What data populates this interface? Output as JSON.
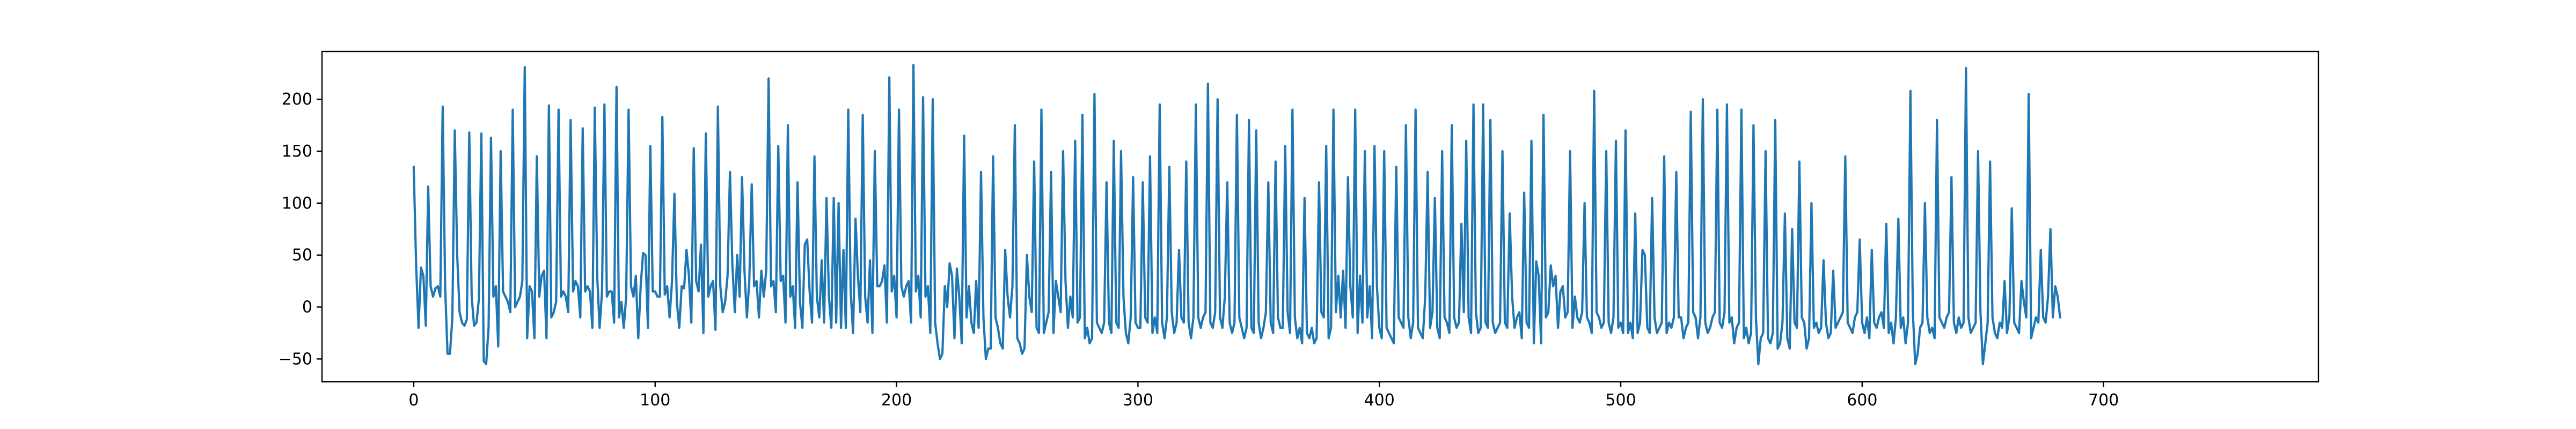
{
  "chart_data": {
    "type": "line",
    "title": "",
    "xlabel": "",
    "ylabel": "",
    "xlim": [
      -38,
      789
    ],
    "ylim": [
      -72,
      246
    ],
    "grid": false,
    "legend": "none",
    "x_ticks": [
      0,
      100,
      200,
      300,
      400,
      500,
      600,
      700
    ],
    "y_ticks": [
      -50,
      0,
      50,
      100,
      150,
      200
    ],
    "x_tick_labels": [
      "0",
      "100",
      "200",
      "300",
      "400",
      "500",
      "600",
      "700"
    ],
    "y_tick_labels": [
      "−50",
      "0",
      "50",
      "100",
      "150",
      "200"
    ],
    "series": [
      {
        "color": "#1f77b4",
        "x_start": 0,
        "x_step": 1,
        "values": [
          135,
          40,
          -20,
          38,
          30,
          -18,
          116,
          20,
          10,
          18,
          20,
          10,
          193,
          20,
          -45,
          -45,
          -10,
          170,
          50,
          -5,
          -15,
          -18,
          -12,
          168,
          10,
          -18,
          -15,
          8,
          167,
          -52,
          -55,
          -20,
          163,
          10,
          20,
          -38,
          150,
          15,
          10,
          5,
          -5,
          190,
          0,
          5,
          10,
          25,
          231,
          -30,
          20,
          15,
          -30,
          145,
          10,
          30,
          35,
          -30,
          194,
          -10,
          -5,
          5,
          190,
          10,
          15,
          10,
          -5,
          180,
          15,
          25,
          20,
          -10,
          172,
          15,
          20,
          15,
          -20,
          192,
          30,
          -20,
          15,
          195,
          10,
          15,
          15,
          -15,
          212,
          -10,
          5,
          -20,
          10,
          190,
          20,
          10,
          30,
          -30,
          20,
          52,
          50,
          -20,
          155,
          15,
          15,
          10,
          10,
          183,
          12,
          20,
          -10,
          25,
          109,
          5,
          -20,
          20,
          18,
          55,
          30,
          -15,
          153,
          25,
          15,
          60,
          -25,
          167,
          10,
          20,
          25,
          -22,
          193,
          20,
          -5,
          5,
          30,
          130,
          40,
          -5,
          50,
          10,
          125,
          35,
          -10,
          25,
          118,
          20,
          25,
          -10,
          35,
          10,
          35,
          220,
          20,
          25,
          -5,
          155,
          25,
          30,
          -15,
          175,
          10,
          20,
          -20,
          120,
          5,
          -20,
          60,
          65,
          15,
          -15,
          145,
          10,
          -10,
          45,
          -15,
          105,
          10,
          -20,
          105,
          -15,
          100,
          -20,
          55,
          -20,
          190,
          15,
          -25,
          85,
          30,
          -5,
          185,
          10,
          -15,
          45,
          -25,
          150,
          20,
          20,
          25,
          40,
          -15,
          221,
          15,
          30,
          -10,
          190,
          20,
          10,
          20,
          25,
          -15,
          233,
          15,
          30,
          -10,
          202,
          10,
          20,
          -25,
          200,
          -15,
          -35,
          -50,
          -45,
          20,
          0,
          42,
          30,
          -30,
          37,
          10,
          -35,
          165,
          -10,
          20,
          -15,
          -25,
          25,
          -20,
          130,
          -10,
          -50,
          -40,
          -40,
          145,
          -10,
          -20,
          -35,
          -40,
          55,
          10,
          -10,
          20,
          175,
          -30,
          -35,
          -45,
          -40,
          50,
          10,
          -5,
          140,
          -20,
          -25,
          190,
          -25,
          -15,
          -5,
          130,
          -25,
          25,
          10,
          -5,
          150,
          25,
          -20,
          10,
          -10,
          160,
          -15,
          -10,
          185,
          -30,
          -20,
          -35,
          -30,
          205,
          -15,
          -20,
          -25,
          -15,
          120,
          -15,
          -25,
          160,
          -15,
          -20,
          150,
          10,
          -25,
          -35,
          -10,
          125,
          -15,
          -20,
          -20,
          120,
          -10,
          -15,
          145,
          -25,
          -10,
          -25,
          195,
          -15,
          -30,
          -10,
          135,
          -5,
          -25,
          -15,
          55,
          -10,
          -15,
          140,
          -15,
          -30,
          -10,
          195,
          -10,
          -20,
          -10,
          -5,
          215,
          -15,
          -20,
          -5,
          200,
          -10,
          -20,
          10,
          120,
          -15,
          -25,
          -15,
          185,
          -10,
          -20,
          -30,
          -20,
          180,
          -20,
          -25,
          170,
          -15,
          -30,
          -20,
          -5,
          120,
          -15,
          -25,
          140,
          -10,
          -20,
          -20,
          155,
          -5,
          -25,
          190,
          -10,
          -30,
          -20,
          -35,
          105,
          -25,
          -30,
          -20,
          -35,
          -30,
          120,
          -5,
          -10,
          155,
          -30,
          -20,
          190,
          -5,
          30,
          -10,
          35,
          -20,
          125,
          20,
          -10,
          190,
          -25,
          30,
          -15,
          150,
          -10,
          20,
          -30,
          155,
          20,
          -20,
          -30,
          150,
          -20,
          -25,
          -30,
          -35,
          135,
          -10,
          -15,
          -20,
          175,
          -10,
          -30,
          -15,
          190,
          -20,
          -25,
          -30,
          10,
          130,
          -20,
          -5,
          105,
          -20,
          -30,
          150,
          -10,
          -15,
          -25,
          175,
          -10,
          -20,
          -15,
          80,
          -5,
          160,
          -10,
          -25,
          195,
          -5,
          -25,
          -20,
          195,
          -15,
          -20,
          180,
          -15,
          -25,
          -20,
          -15,
          150,
          -15,
          -20,
          90,
          10,
          -20,
          -10,
          -5,
          -30,
          110,
          -15,
          -20,
          160,
          -35,
          44,
          30,
          -35,
          185,
          -10,
          -5,
          40,
          20,
          30,
          -20,
          15,
          20,
          -10,
          -5,
          150,
          -20,
          10,
          -10,
          -15,
          -5,
          100,
          -10,
          -15,
          -25,
          208,
          -5,
          -10,
          -20,
          -15,
          150,
          -15,
          -25,
          -10,
          160,
          -20,
          -15,
          -25,
          170,
          -25,
          -15,
          -30,
          90,
          -25,
          -15,
          55,
          50,
          -20,
          -25,
          105,
          -10,
          -25,
          -20,
          -15,
          145,
          -25,
          -15,
          -20,
          -10,
          130,
          -10,
          -10,
          -30,
          -20,
          -15,
          188,
          -5,
          -10,
          -30,
          -10,
          200,
          -15,
          -25,
          -20,
          -10,
          -5,
          190,
          -15,
          -20,
          -5,
          195,
          -15,
          -10,
          -35,
          -20,
          -15,
          190,
          -30,
          -20,
          -35,
          -25,
          175,
          -10,
          -55,
          -30,
          -25,
          150,
          -30,
          -35,
          -25,
          180,
          -40,
          -35,
          -15,
          90,
          -30,
          -40,
          75,
          -15,
          -20,
          140,
          -10,
          -15,
          -40,
          -30,
          100,
          -20,
          -15,
          -25,
          -20,
          45,
          -15,
          -30,
          -25,
          35,
          -20,
          -15,
          -10,
          -5,
          145,
          -15,
          -20,
          -25,
          -10,
          -5,
          65,
          -15,
          -25,
          -10,
          -30,
          55,
          -15,
          -20,
          -10,
          -5,
          -20,
          80,
          -25,
          -15,
          -35,
          -10,
          85,
          -20,
          -10,
          -35,
          -15,
          208,
          -5,
          -55,
          -45,
          -20,
          -15,
          100,
          -10,
          -25,
          -20,
          -30,
          180,
          -10,
          -15,
          -20,
          -10,
          -5,
          125,
          -15,
          -25,
          -10,
          -20,
          -15,
          230,
          -10,
          -25,
          -20,
          -15,
          150,
          -5,
          -55,
          -35,
          -15,
          140,
          -10,
          -25,
          -30,
          -15,
          -20,
          25,
          -25,
          -10,
          95,
          -15,
          -20,
          -25,
          25,
          5,
          -10,
          205,
          -30,
          -20,
          -10,
          -15,
          55,
          -10,
          -15,
          10,
          75,
          -10,
          20,
          10,
          -10
        ]
      }
    ]
  }
}
